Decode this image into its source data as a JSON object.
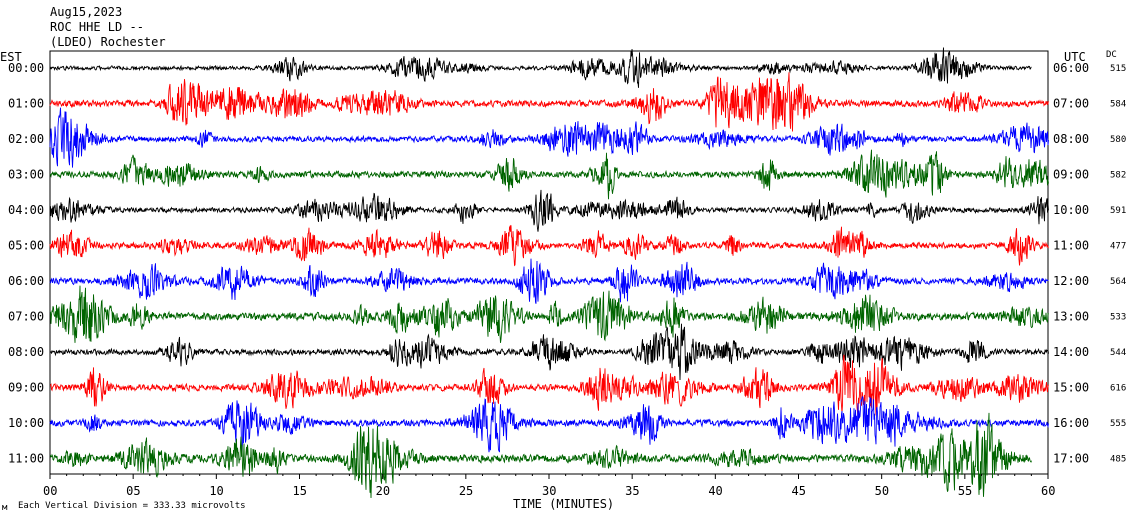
{
  "header": {
    "date": "Aug15,2023",
    "station": "ROC HHE LD --",
    "location": "(LDEO) Rochester"
  },
  "left_zone_label": "EST",
  "right_zone_label": "UTC",
  "dc_header": "DC",
  "footer": {
    "scale_note": "Each Vertical Division =  333.33 microvolts",
    "corner_mark": "м"
  },
  "chart_data": {
    "type": "line",
    "title": "",
    "xlabel": "TIME (MINUTES)",
    "ylabel": "",
    "xlim": [
      0,
      60
    ],
    "x_ticks": [
      "00",
      "05",
      "10",
      "15",
      "20",
      "25",
      "30",
      "35",
      "40",
      "45",
      "50",
      "55",
      "60"
    ],
    "rows": [
      {
        "left": "00:00",
        "right": "06:00",
        "dc": "515",
        "color": "#000000",
        "amp": 0.55,
        "end_min": 59
      },
      {
        "left": "01:00",
        "right": "07:00",
        "dc": "584",
        "color": "#ff0000",
        "amp": 0.9,
        "end_min": 60
      },
      {
        "left": "02:00",
        "right": "08:00",
        "dc": "580",
        "color": "#0000ff",
        "amp": 0.8,
        "end_min": 60
      },
      {
        "left": "03:00",
        "right": "09:00",
        "dc": "582",
        "color": "#006400",
        "amp": 0.9,
        "end_min": 60
      },
      {
        "left": "04:00",
        "right": "10:00",
        "dc": "591",
        "color": "#000000",
        "amp": 0.7,
        "end_min": 60
      },
      {
        "left": "05:00",
        "right": "11:00",
        "dc": "477",
        "color": "#ff0000",
        "amp": 0.85,
        "end_min": 60
      },
      {
        "left": "06:00",
        "right": "12:00",
        "dc": "564",
        "color": "#0000ff",
        "amp": 0.9,
        "end_min": 60
      },
      {
        "left": "07:00",
        "right": "13:00",
        "dc": "533",
        "color": "#006400",
        "amp": 1.1,
        "end_min": 60
      },
      {
        "left": "08:00",
        "right": "14:00",
        "dc": "544",
        "color": "#000000",
        "amp": 0.8,
        "end_min": 60
      },
      {
        "left": "09:00",
        "right": "15:00",
        "dc": "616",
        "color": "#ff0000",
        "amp": 0.95,
        "end_min": 60
      },
      {
        "left": "10:00",
        "right": "16:00",
        "dc": "555",
        "color": "#0000ff",
        "amp": 0.95,
        "end_min": 60
      },
      {
        "left": "11:00",
        "right": "17:00",
        "dc": "485",
        "color": "#006400",
        "amp": 1.1,
        "end_min": 59
      }
    ]
  }
}
